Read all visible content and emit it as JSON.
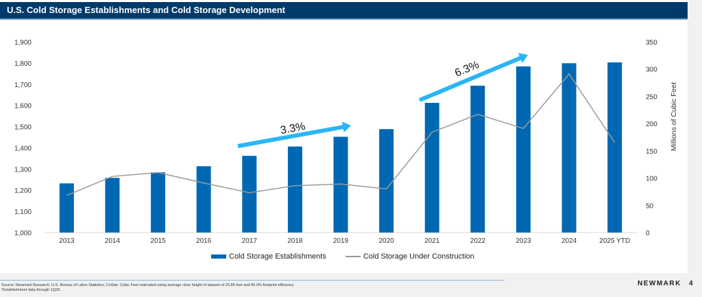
{
  "header": {
    "title": "U.S. Cold Storage Establishments and Cold Storage Development"
  },
  "chart_data": {
    "type": "bar",
    "title": "U.S. Cold Storage Establishments and Cold Storage Development",
    "categories": [
      "2013",
      "2014",
      "2015",
      "2016",
      "2017",
      "2018",
      "2019",
      "2020",
      "2021",
      "2022",
      "2023",
      "2024",
      "2025 YTD"
    ],
    "series": [
      {
        "name": "Cold Storage Establishments",
        "type": "bar",
        "axis": "left",
        "color": "#0068b3",
        "values": [
          1232,
          1258,
          1284,
          1313,
          1362,
          1406,
          1452,
          1488,
          1612,
          1693,
          1784,
          1799,
          1803
        ]
      },
      {
        "name": "Cold Storage Under Construction",
        "type": "line",
        "axis": "right",
        "color": "#9a9a9a",
        "values": [
          68,
          103,
          110,
          91,
          73,
          86,
          89,
          80,
          184,
          217,
          191,
          291,
          165
        ]
      }
    ],
    "y_left": {
      "label": "",
      "range": [
        1000,
        1900
      ],
      "ticks": [
        "1,000",
        "1,100",
        "1,200",
        "1,300",
        "1,400",
        "1,500",
        "1,600",
        "1,700",
        "1,800",
        "1,900"
      ]
    },
    "y_right": {
      "label": "Millions of Cubic Feet",
      "range": [
        0,
        350
      ],
      "ticks": [
        "0",
        "50",
        "100",
        "150",
        "200",
        "250",
        "300",
        "350"
      ]
    },
    "annotations": [
      {
        "text": "3.3%",
        "from": "2017",
        "to": "2019",
        "color": "#29b6f6"
      },
      {
        "text": "6.3%",
        "from": "2021",
        "to": "2023",
        "color": "#29b6f6"
      }
    ],
    "legend_position": "bottom",
    "grid": false
  },
  "legend": {
    "bar_label": "Cold Storage Establishments",
    "line_label": "Cold Storage Under Construction"
  },
  "footer": {
    "source_line1": "Source: Newmark Research, U.S. Bureau of Labor Statistics, CoStar. Cubic Feet estimated using average clear height of dataset of 25.86 feet and 85.0% footprint efficiency",
    "source_line2": "*Establishment data through 1Q25.",
    "brand": "NEWMARK",
    "page_number": "4"
  }
}
